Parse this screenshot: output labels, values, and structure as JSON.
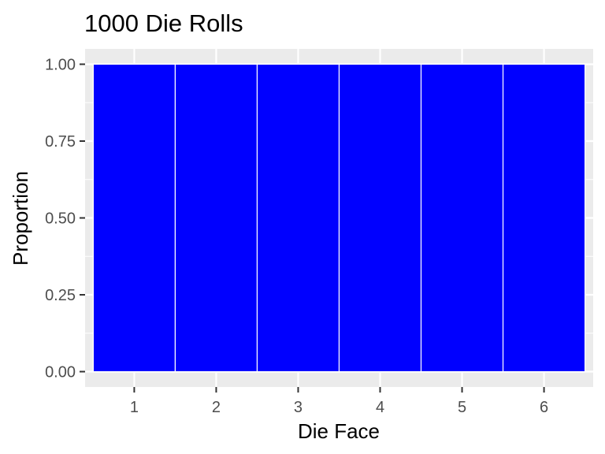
{
  "chart_data": {
    "type": "bar",
    "title": "1000 Die Rolls",
    "xlabel": "Die Face",
    "ylabel": "Proportion",
    "categories": [
      "1",
      "2",
      "3",
      "4",
      "5",
      "6"
    ],
    "values": [
      1.0,
      1.0,
      1.0,
      1.0,
      1.0,
      1.0
    ],
    "ylim": [
      0,
      1
    ],
    "yticks": [
      "0.00",
      "0.25",
      "0.50",
      "0.75",
      "1.00"
    ],
    "grid": true,
    "legend": "none",
    "colors": {
      "bar_fill": "#0000ff",
      "bar_outline": "#ffffff",
      "panel_background": "#ebebeb",
      "grid_major": "#ffffff",
      "tick_text": "#4d4d4d"
    }
  }
}
